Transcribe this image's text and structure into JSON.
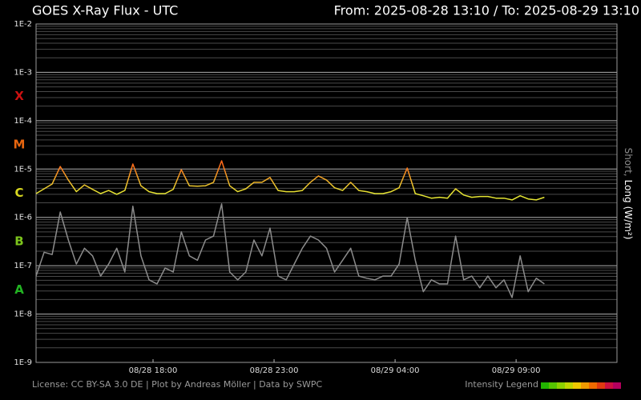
{
  "chart_data": {
    "type": "line",
    "title": "GOES X-Ray Flux - UTC",
    "header_range": "From: 2025-08-28 13:10  /  To: 2025-08-29 13:10",
    "footer": "License: CC BY-SA 3.0 DE | Plot by Andreas Möller | Data by SWPC",
    "log_y": true,
    "grid": true,
    "x": [
      "2025-08-28 13:10",
      "2025-08-28 13:30",
      "2025-08-28 13:50",
      "2025-08-28 14:10",
      "2025-08-28 14:30",
      "2025-08-28 14:50",
      "2025-08-28 15:10",
      "2025-08-28 15:30",
      "2025-08-28 15:50",
      "2025-08-28 16:10",
      "2025-08-28 16:30",
      "2025-08-28 16:50",
      "2025-08-28 17:10",
      "2025-08-28 17:30",
      "2025-08-28 17:50",
      "2025-08-28 18:10",
      "2025-08-28 18:30",
      "2025-08-28 18:50",
      "2025-08-28 19:10",
      "2025-08-28 19:30",
      "2025-08-28 19:50",
      "2025-08-28 20:10",
      "2025-08-28 20:30",
      "2025-08-28 20:50",
      "2025-08-28 21:10",
      "2025-08-28 21:30",
      "2025-08-28 21:50",
      "2025-08-28 22:10",
      "2025-08-28 22:30",
      "2025-08-28 22:50",
      "2025-08-28 23:10",
      "2025-08-28 23:30",
      "2025-08-28 23:50",
      "2025-08-29 00:10",
      "2025-08-29 00:30",
      "2025-08-29 00:50",
      "2025-08-29 01:10",
      "2025-08-29 01:30",
      "2025-08-29 01:50",
      "2025-08-29 02:10",
      "2025-08-29 02:30",
      "2025-08-29 02:50",
      "2025-08-29 03:10",
      "2025-08-29 03:30",
      "2025-08-29 03:50",
      "2025-08-29 04:10",
      "2025-08-29 04:30",
      "2025-08-29 04:50",
      "2025-08-29 05:10",
      "2025-08-29 05:30",
      "2025-08-29 05:50",
      "2025-08-29 06:10",
      "2025-08-29 06:30",
      "2025-08-29 06:50",
      "2025-08-29 07:10",
      "2025-08-29 07:30",
      "2025-08-29 07:50",
      "2025-08-29 08:10",
      "2025-08-29 08:30",
      "2025-08-29 08:50",
      "2025-08-29 09:10",
      "2025-08-29 09:30",
      "2025-08-29 09:50",
      "2025-08-29 10:10"
    ],
    "series": [
      {
        "name": "Short",
        "color": "#8c8c8c",
        "values": [
          6.1e-08,
          1.9e-07,
          1.7e-07,
          1.29e-06,
          3.4e-07,
          1.08e-07,
          2.3e-07,
          1.6e-07,
          6.1e-08,
          1.08e-07,
          2.3e-07,
          7.4e-08,
          1.7e-06,
          1.6e-07,
          5.1e-08,
          4.2e-08,
          9e-08,
          7.4e-08,
          5e-07,
          1.6e-07,
          1.3e-07,
          3.4e-07,
          4.1e-07,
          1.9e-06,
          7.4e-08,
          5.1e-08,
          7.4e-08,
          3.4e-07,
          1.6e-07,
          6e-07,
          6.1e-08,
          5.1e-08,
          1.08e-07,
          2.3e-07,
          4.1e-07,
          3.4e-07,
          2.3e-07,
          7.4e-08,
          1.3e-07,
          2.3e-07,
          6.1e-08,
          5.5e-08,
          5.1e-08,
          6.1e-08,
          6.1e-08,
          1.08e-07,
          9.9e-07,
          1.3e-07,
          2.9e-08,
          5.1e-08,
          4.2e-08,
          4.2e-08,
          4.1e-07,
          5.1e-08,
          6.1e-08,
          3.5e-08,
          6.1e-08,
          3.5e-08,
          5.1e-08,
          2.2e-08,
          1.6e-07,
          2.9e-08,
          5.5e-08,
          4.2e-08
        ]
      },
      {
        "name": "Long",
        "color": "#e6e633",
        "peak_color": "#ff6a1a",
        "values": [
          3.1e-06,
          3.9e-06,
          4.9e-06,
          1.13e-05,
          5.9e-06,
          3.4e-06,
          4.7e-06,
          3.8e-06,
          3.1e-06,
          3.6e-06,
          3e-06,
          3.6e-06,
          1.27e-05,
          4.5e-06,
          3.4e-06,
          3.1e-06,
          3.1e-06,
          3.8e-06,
          9.7e-06,
          4.5e-06,
          4.4e-06,
          4.5e-06,
          5.3e-06,
          1.48e-05,
          4.5e-06,
          3.4e-06,
          3.9e-06,
          5.3e-06,
          5.3e-06,
          6.7e-06,
          3.6e-06,
          3.4e-06,
          3.4e-06,
          3.6e-06,
          5.3e-06,
          7.2e-06,
          5.9e-06,
          4.1e-06,
          3.6e-06,
          5.3e-06,
          3.6e-06,
          3.4e-06,
          3.1e-06,
          3.1e-06,
          3.4e-06,
          4.1e-06,
          1.05e-05,
          3.1e-06,
          2.8e-06,
          2.5e-06,
          2.6e-06,
          2.5e-06,
          3.9e-06,
          2.9e-06,
          2.6e-06,
          2.7e-06,
          2.7e-06,
          2.5e-06,
          2.5e-06,
          2.3e-06,
          2.8e-06,
          2.4e-06,
          2.3e-06,
          2.6e-06
        ]
      }
    ],
    "ylabel_separator": ",",
    "ylabel_unit": "(W/m²)",
    "xlim": [
      "2025-08-28 13:10",
      "2025-08-29 13:10"
    ],
    "xticks": [
      {
        "value": "2025-08-28 18:00",
        "label": "08/28 18:00"
      },
      {
        "value": "2025-08-28 23:00",
        "label": "08/28 23:00"
      },
      {
        "value": "2025-08-29 04:00",
        "label": "08/29 04:00"
      },
      {
        "value": "2025-08-29 09:00",
        "label": "08/29 09:00"
      }
    ],
    "ylim": [
      1e-09,
      0.01
    ],
    "yticks": [
      {
        "value": 0.01,
        "label": "1E-2"
      },
      {
        "value": 0.001,
        "label": "1E-3"
      },
      {
        "value": 0.0001,
        "label": "1E-4"
      },
      {
        "value": 1e-05,
        "label": "1E-5"
      },
      {
        "value": 1e-06,
        "label": "1E-6"
      },
      {
        "value": 1e-07,
        "label": "1E-7"
      },
      {
        "value": 1e-08,
        "label": "1E-8"
      },
      {
        "value": 1e-09,
        "label": "1E-9"
      }
    ],
    "minor_yticks": [
      2e-09,
      3e-09,
      4e-09,
      5e-09,
      6e-09,
      7e-09,
      8e-09,
      9e-09,
      2e-08,
      3e-08,
      4e-08,
      5e-08,
      6e-08,
      7e-08,
      8e-08,
      9e-08,
      2e-07,
      3e-07,
      4e-07,
      5e-07,
      6e-07,
      7e-07,
      8e-07,
      9e-07,
      2e-06,
      3e-06,
      4e-06,
      5e-06,
      6e-06,
      7e-06,
      8e-06,
      9e-06,
      2e-05,
      3e-05,
      4e-05,
      5e-05,
      6e-05,
      7e-05,
      8e-05,
      9e-05,
      0.0002,
      0.0003,
      0.0004,
      0.0005,
      0.0006,
      0.0007,
      0.0008,
      0.0009,
      0.002,
      0.003,
      0.004,
      0.005,
      0.006,
      0.007,
      0.008,
      0.009
    ],
    "class_labels": [
      {
        "label": "X",
        "color": "#cc1111"
      },
      {
        "label": "M",
        "color": "#e8660f"
      },
      {
        "label": "C",
        "color": "#d8d820"
      },
      {
        "label": "B",
        "color": "#7cc41c"
      },
      {
        "label": "A",
        "color": "#22b422"
      }
    ],
    "intensity_legend": {
      "label": "Intensity Legend",
      "colors": [
        "#22b400",
        "#55c400",
        "#8cd000",
        "#c0d400",
        "#eec800",
        "#f09a00",
        "#f06a00",
        "#e03a10",
        "#cc1040",
        "#b4005e"
      ]
    }
  }
}
